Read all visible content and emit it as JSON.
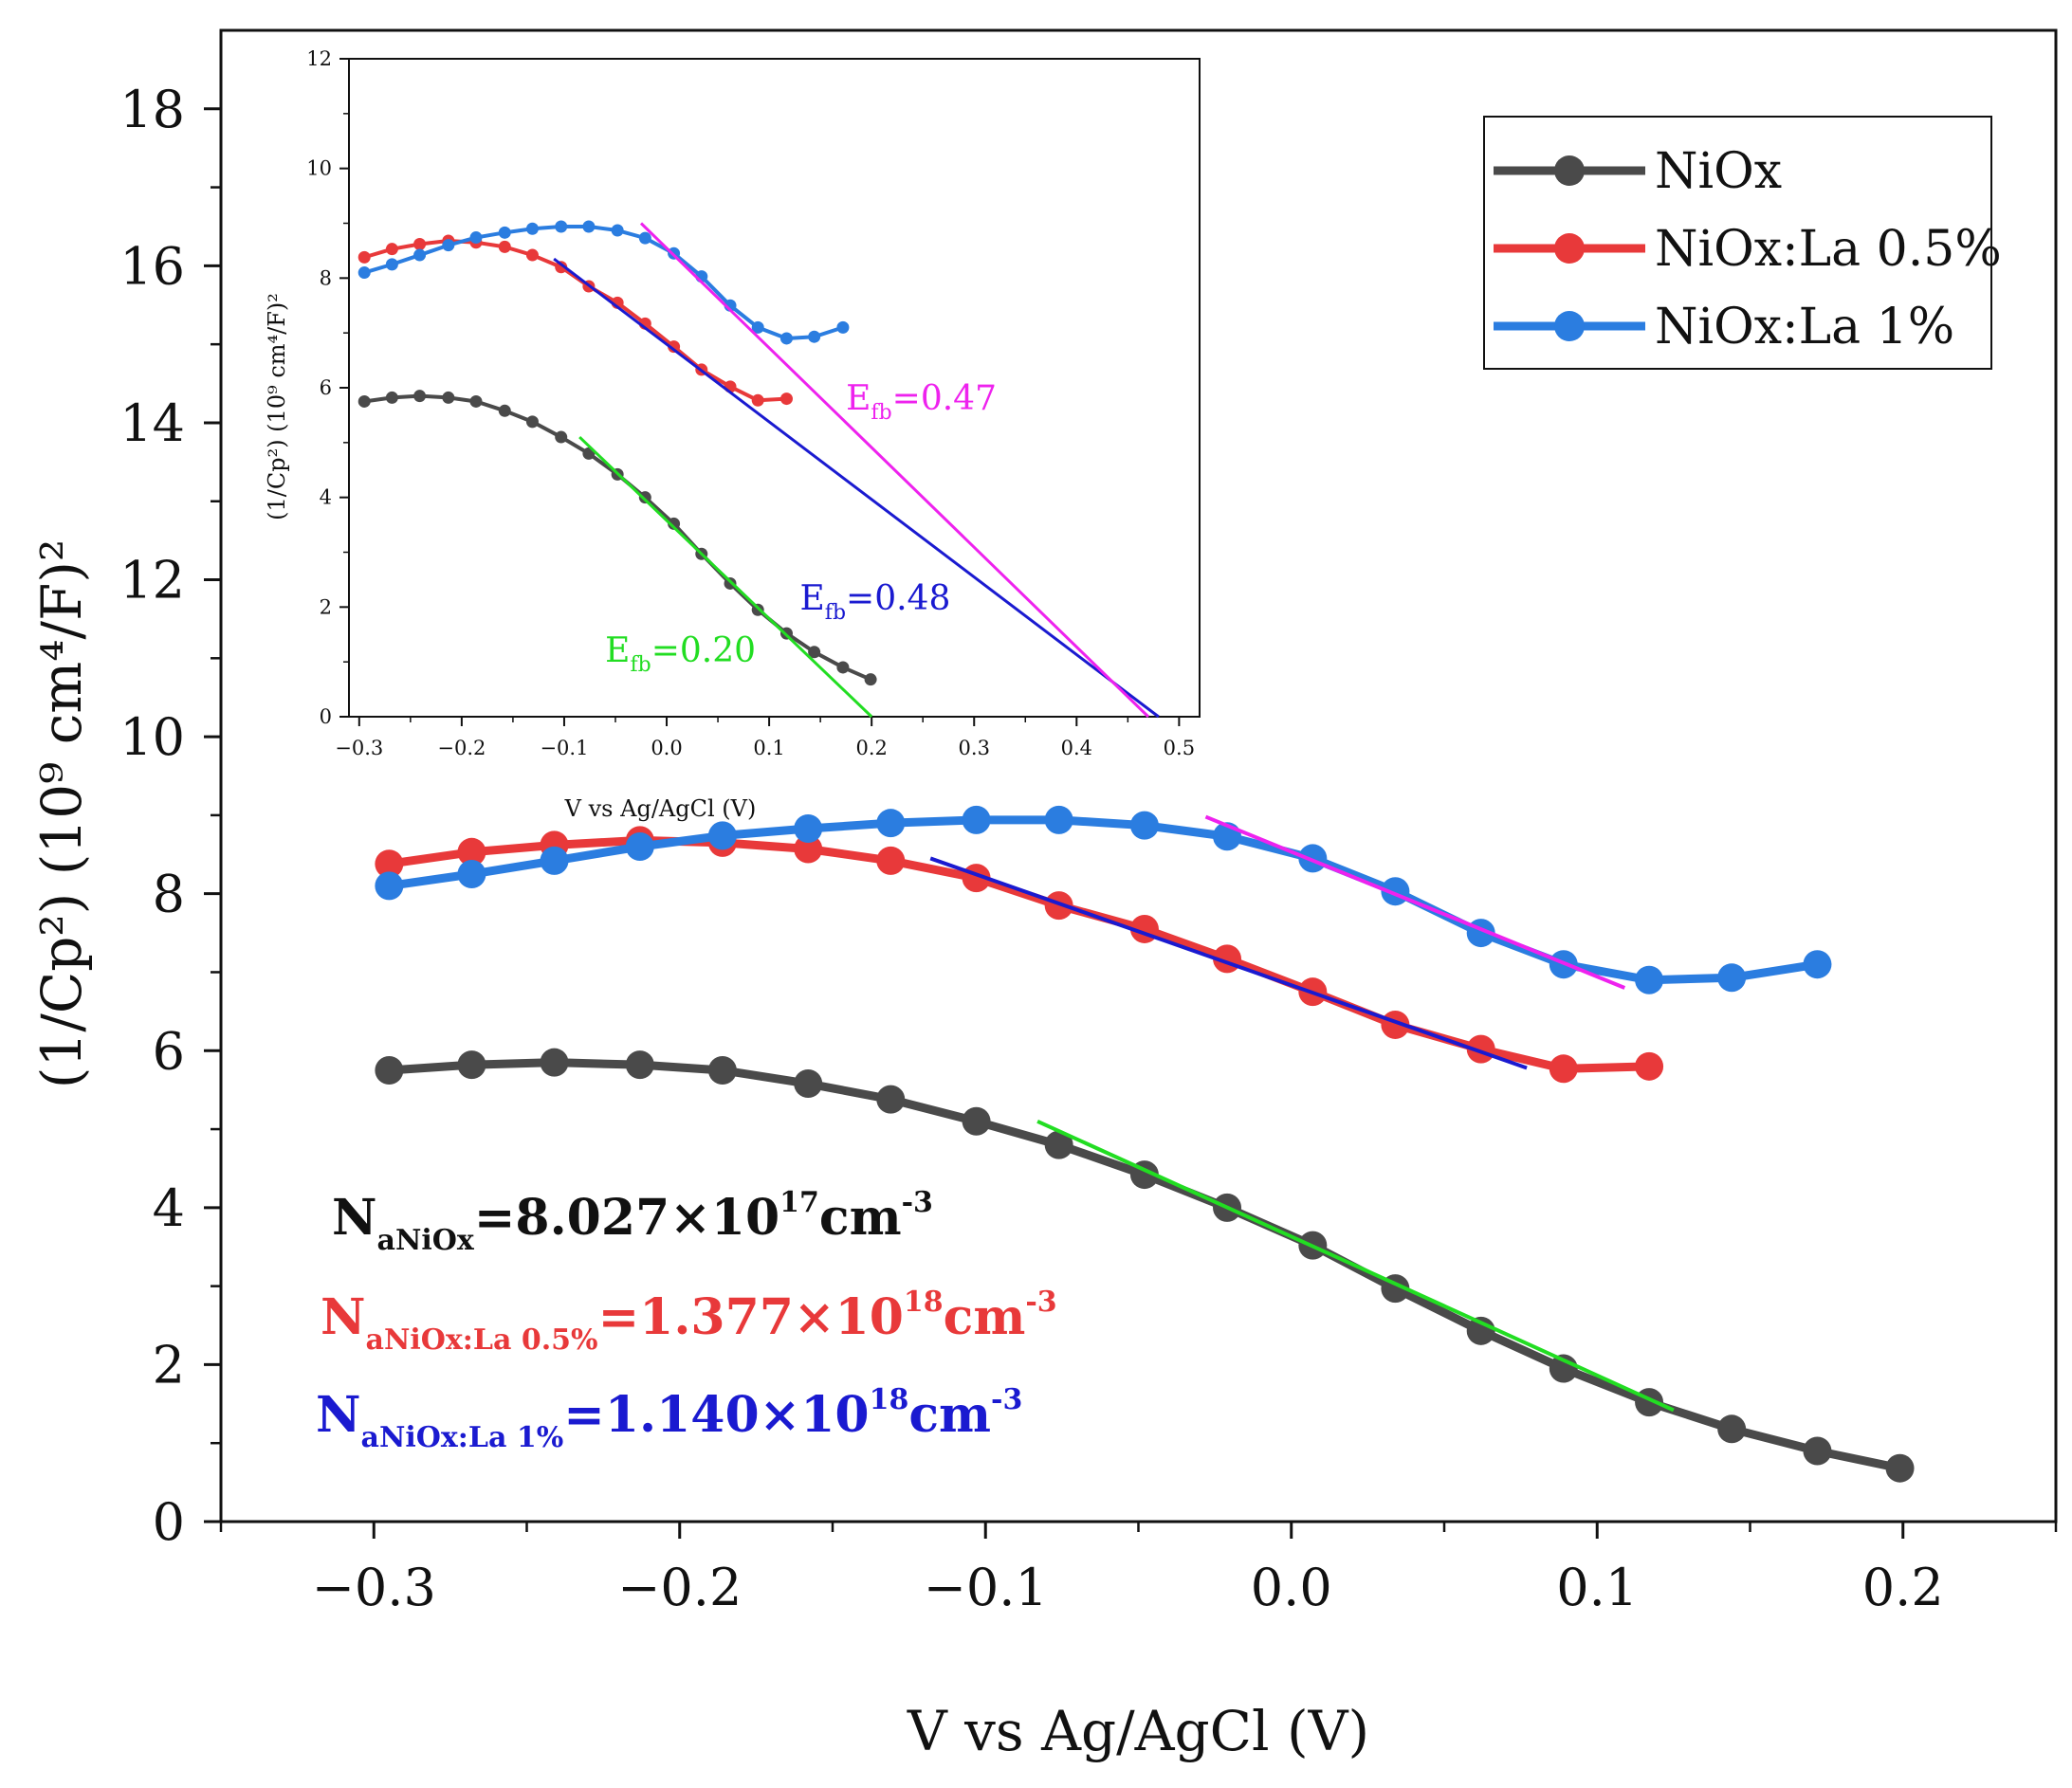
{
  "chart_data": [
    {
      "id": "main",
      "type": "line",
      "title": "",
      "xlabel": "V vs Ag/AgCl (V)",
      "ylabel": "(1/Cp²) (10⁹ cm⁴/F)²",
      "xlim": [
        -0.35,
        0.25
      ],
      "ylim": [
        0,
        19
      ],
      "xticks": [
        -0.3,
        -0.2,
        -0.1,
        0.0,
        0.1,
        0.2
      ],
      "xtick_labels": [
        "−0.3",
        "−0.2",
        "−0.1",
        "0.0",
        "0.1",
        "0.2"
      ],
      "yticks": [
        0,
        2,
        4,
        6,
        8,
        10,
        12,
        14,
        16,
        18
      ],
      "ytick_labels": [
        "0",
        "2",
        "4",
        "6",
        "8",
        "10",
        "12",
        "14",
        "16",
        "18"
      ],
      "legend_position": "top-right",
      "series": [
        {
          "name": "NiOx",
          "color": "#4a4a4a",
          "x": [
            -0.295,
            -0.268,
            -0.241,
            -0.213,
            -0.186,
            -0.158,
            -0.131,
            -0.103,
            -0.076,
            -0.048,
            -0.021,
            0.007,
            0.034,
            0.062,
            0.089,
            0.117,
            0.144,
            0.172,
            0.199
          ],
          "y": [
            5.75,
            5.82,
            5.85,
            5.82,
            5.75,
            5.58,
            5.38,
            5.1,
            4.8,
            4.42,
            4.0,
            3.52,
            2.97,
            2.43,
            1.95,
            1.52,
            1.18,
            0.9,
            0.68
          ]
        },
        {
          "name": "NiOx:La 0.5%",
          "color": "#e8393a",
          "x": [
            -0.295,
            -0.268,
            -0.241,
            -0.213,
            -0.186,
            -0.158,
            -0.131,
            -0.103,
            -0.076,
            -0.048,
            -0.021,
            0.007,
            0.034,
            0.062,
            0.089,
            0.117
          ],
          "y": [
            8.38,
            8.53,
            8.62,
            8.68,
            8.65,
            8.57,
            8.42,
            8.2,
            7.85,
            7.55,
            7.17,
            6.75,
            6.33,
            6.02,
            5.77,
            5.8
          ]
        },
        {
          "name": "NiOx:La 1%",
          "color": "#2b7de0",
          "x": [
            -0.295,
            -0.268,
            -0.241,
            -0.213,
            -0.186,
            -0.158,
            -0.131,
            -0.103,
            -0.076,
            -0.048,
            -0.021,
            0.007,
            0.034,
            0.062,
            0.089,
            0.117,
            0.144,
            0.172
          ],
          "y": [
            8.1,
            8.25,
            8.42,
            8.6,
            8.74,
            8.83,
            8.9,
            8.94,
            8.94,
            8.87,
            8.73,
            8.45,
            8.03,
            7.5,
            7.1,
            6.9,
            6.93,
            7.1
          ]
        }
      ],
      "fit_lines": [
        {
          "name": "NiOx fit",
          "color": "#22dd22",
          "x": [
            -0.083,
            0.125
          ],
          "y": [
            5.1,
            1.42
          ]
        },
        {
          "name": "NiOx:La 0.5% fit",
          "color": "#1a1ad0",
          "x": [
            -0.118,
            0.077
          ],
          "y": [
            8.45,
            5.78
          ]
        },
        {
          "name": "NiOx:La 1% fit",
          "color": "#ee22ee",
          "x": [
            -0.028,
            0.109
          ],
          "y": [
            8.98,
            6.8
          ]
        }
      ],
      "annotations": [
        {
          "main": "N",
          "sub": "aNiOx",
          "mid": "=8.027×10",
          "sup": "17",
          "mid2": "cm",
          "sup2": "-3",
          "color": "#111111"
        },
        {
          "main": "N",
          "sub": "aNiOx:La 0.5%",
          "mid": "=1.377×10",
          "sup": "18",
          "mid2": "cm",
          "sup2": "-3",
          "color": "#e8393a"
        },
        {
          "main": "N",
          "sub": "aNiOx:La 1%",
          "mid": "=1.140×10",
          "sup": "18",
          "mid2": "cm",
          "sup2": "-3",
          "color": "#1a1ad0"
        }
      ]
    },
    {
      "id": "inset",
      "type": "line",
      "title": "",
      "xlabel": "V vs Ag/AgCl (V)",
      "ylabel": "(1/Cp²) (10⁹ cm⁴/F)²",
      "xlim": [
        -0.31,
        0.52
      ],
      "ylim": [
        0,
        12
      ],
      "xticks": [
        -0.3,
        -0.2,
        -0.1,
        0.0,
        0.1,
        0.2,
        0.3,
        0.4,
        0.5
      ],
      "xtick_labels": [
        "−0.3",
        "−0.2",
        "−0.1",
        "0.0",
        "0.1",
        "0.2",
        "0.3",
        "0.4",
        "0.5"
      ],
      "yticks": [
        0,
        2,
        4,
        6,
        8,
        10,
        12
      ],
      "ytick_labels": [
        "0",
        "2",
        "4",
        "6",
        "8",
        "10",
        "12"
      ],
      "series": [
        {
          "name": "NiOx",
          "color": "#4a4a4a",
          "x": [
            -0.295,
            -0.268,
            -0.241,
            -0.213,
            -0.186,
            -0.158,
            -0.131,
            -0.103,
            -0.076,
            -0.048,
            -0.021,
            0.007,
            0.034,
            0.062,
            0.089,
            0.117,
            0.144,
            0.172,
            0.199
          ],
          "y": [
            5.75,
            5.82,
            5.85,
            5.82,
            5.75,
            5.58,
            5.38,
            5.1,
            4.8,
            4.42,
            4.0,
            3.52,
            2.97,
            2.43,
            1.95,
            1.52,
            1.18,
            0.9,
            0.68
          ]
        },
        {
          "name": "NiOx:La 0.5%",
          "color": "#e8393a",
          "x": [
            -0.295,
            -0.268,
            -0.241,
            -0.213,
            -0.186,
            -0.158,
            -0.131,
            -0.103,
            -0.076,
            -0.048,
            -0.021,
            0.007,
            0.034,
            0.062,
            0.089,
            0.117
          ],
          "y": [
            8.38,
            8.53,
            8.62,
            8.68,
            8.65,
            8.57,
            8.42,
            8.2,
            7.85,
            7.55,
            7.17,
            6.75,
            6.33,
            6.02,
            5.77,
            5.8
          ]
        },
        {
          "name": "NiOx:La 1%",
          "color": "#2b7de0",
          "x": [
            -0.295,
            -0.268,
            -0.241,
            -0.213,
            -0.186,
            -0.158,
            -0.131,
            -0.103,
            -0.076,
            -0.048,
            -0.021,
            0.007,
            0.034,
            0.062,
            0.089,
            0.117,
            0.144,
            0.172
          ],
          "y": [
            8.1,
            8.25,
            8.42,
            8.6,
            8.74,
            8.83,
            8.9,
            8.94,
            8.94,
            8.87,
            8.73,
            8.45,
            8.03,
            7.5,
            7.1,
            6.9,
            6.93,
            7.1
          ]
        }
      ],
      "fit_lines": [
        {
          "name": "NiOx fit",
          "color": "#22dd22",
          "x": [
            -0.085,
            0.2
          ],
          "y": [
            5.1,
            0.0
          ]
        },
        {
          "name": "NiOx:La 0.5% fit",
          "color": "#1a1ad0",
          "x": [
            -0.11,
            0.48
          ],
          "y": [
            8.35,
            0.0
          ]
        },
        {
          "name": "NiOx:La 1% fit",
          "color": "#ee22ee",
          "x": [
            -0.025,
            0.47
          ],
          "y": [
            9.0,
            0.0
          ]
        }
      ],
      "efb_labels": [
        {
          "main": "E",
          "sub": "fb",
          "rest": "=0.20",
          "color": "#22dd22",
          "x": -0.06,
          "y": 1.0
        },
        {
          "main": "E",
          "sub": "fb",
          "rest": "=0.48",
          "color": "#1a1ad0",
          "x": 0.13,
          "y": 1.95
        },
        {
          "main": "E",
          "sub": "fb",
          "rest": "=0.47",
          "color": "#ee22ee",
          "x": 0.175,
          "y": 5.6
        }
      ]
    }
  ]
}
